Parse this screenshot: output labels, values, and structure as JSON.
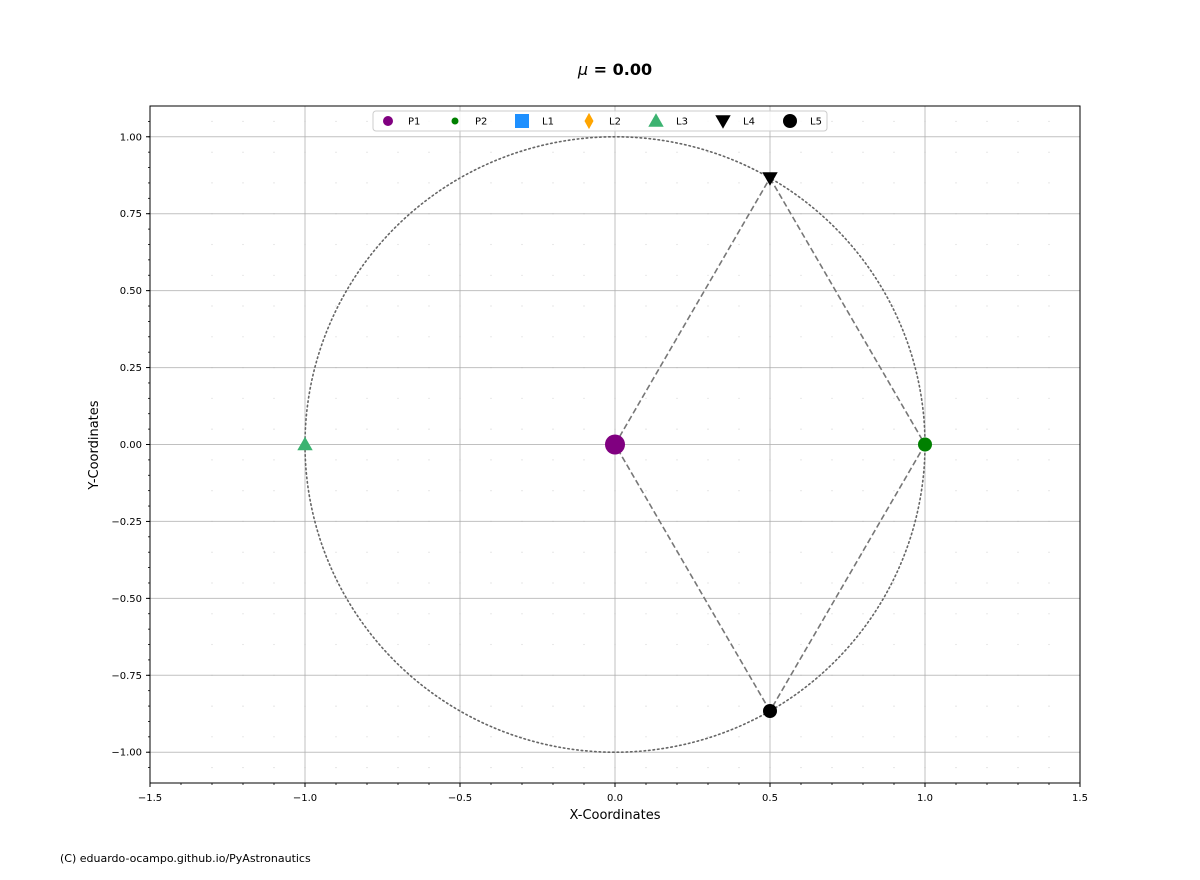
{
  "chart_data": {
    "type": "scatter",
    "title_symbol": "μ",
    "title_suffix": " = 0.00",
    "xlabel": "X-Coordinates",
    "ylabel": "Y-Coordinates",
    "xlim": [
      -1.5,
      1.5
    ],
    "ylim": [
      -1.1,
      1.1
    ],
    "x_ticks": [
      -1.5,
      -1.0,
      -0.5,
      0.0,
      0.5,
      1.0,
      1.5
    ],
    "x_tick_labels": [
      "−1.5",
      "−1.0",
      "−0.5",
      "0.0",
      "0.5",
      "1.0",
      "1.5"
    ],
    "y_ticks": [
      1.0,
      0.75,
      0.5,
      0.25,
      0.0,
      -0.25,
      -0.5,
      -0.75,
      -1.0
    ],
    "y_tick_labels": [
      "1.00",
      "0.75",
      "0.50",
      "0.25",
      "0.00",
      "−0.25",
      "−0.50",
      "−0.75",
      "−1.00"
    ],
    "grid": true,
    "legend_position": "top-center",
    "circle": {
      "center": [
        0,
        0
      ],
      "radius": 1.0,
      "style": "dotted",
      "color": "#666666"
    },
    "triangles": [
      {
        "from": [
          0,
          0
        ],
        "to": [
          0.5,
          0.866
        ]
      },
      {
        "from": [
          0.5,
          0.866
        ],
        "to": [
          1.0,
          0.0
        ]
      },
      {
        "from": [
          1.0,
          0.0
        ],
        "to": [
          0.5,
          -0.866
        ]
      },
      {
        "from": [
          0.5,
          -0.866
        ],
        "to": [
          0,
          0
        ]
      }
    ],
    "series": [
      {
        "name": "P1",
        "x": 0.0,
        "y": 0.0,
        "marker": "circle",
        "color": "#800080",
        "size": "large",
        "visible": true
      },
      {
        "name": "P2",
        "x": 1.0,
        "y": 0.0,
        "marker": "circle",
        "color": "#008000",
        "size": "medium",
        "visible": true
      },
      {
        "name": "L1",
        "x": null,
        "y": null,
        "marker": "square",
        "color": "#1E90FF",
        "visible": false
      },
      {
        "name": "L2",
        "x": null,
        "y": null,
        "marker": "diamond",
        "color": "#FFA500",
        "visible": false
      },
      {
        "name": "L3",
        "x": -1.0,
        "y": 0.0,
        "marker": "triangle-up",
        "color": "#3CB371",
        "size": "medium",
        "visible": true
      },
      {
        "name": "L4",
        "x": 0.5,
        "y": 0.866,
        "marker": "triangle-down",
        "color": "#000000",
        "size": "medium",
        "visible": true
      },
      {
        "name": "L5",
        "x": 0.5,
        "y": -0.866,
        "marker": "circle",
        "color": "#000000",
        "size": "medium",
        "visible": true
      }
    ]
  },
  "footer": {
    "copyright": "(C) eduardo-ocampo.github.io/PyAstronautics"
  }
}
